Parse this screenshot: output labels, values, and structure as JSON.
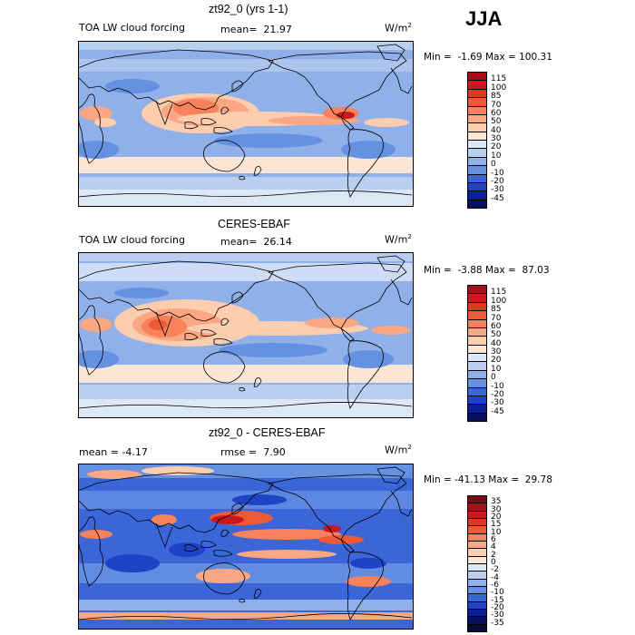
{
  "season": "JJA",
  "panels": [
    {
      "title": "zt92_0 (yrs 1-1)",
      "left_label": "TOA LW cloud forcing",
      "stat_label": "mean=",
      "stat_value": "21.97",
      "units": "W/m",
      "units_sup": "2",
      "minmax": "Min =  -1.69 Max = 100.31",
      "colorbar": {
        "labels": [
          "115",
          "100",
          "85",
          "70",
          "60",
          "50",
          "40",
          "30",
          "20",
          "10",
          "0",
          "-10",
          "-20",
          "-30",
          "-45"
        ],
        "colors": [
          "#a50f15",
          "#cb181d",
          "#e0381f",
          "#ef5a36",
          "#f7825c",
          "#fca783",
          "#fdcdb0",
          "#fbe6d6",
          "#dde8f7",
          "#b9cff0",
          "#8fb0e8",
          "#6690e2",
          "#3b66d8",
          "#1f43c4",
          "#0b1e9c",
          "#08115e"
        ]
      }
    },
    {
      "title": "CERES-EBAF",
      "left_label": "TOA LW cloud forcing",
      "stat_label": "mean=",
      "stat_value": "26.14",
      "units": "W/m",
      "units_sup": "2",
      "minmax": "Min =  -3.88 Max =  87.03",
      "colorbar": {
        "labels": [
          "115",
          "100",
          "85",
          "70",
          "60",
          "50",
          "40",
          "30",
          "20",
          "10",
          "0",
          "-10",
          "-20",
          "-30",
          "-45"
        ],
        "colors": [
          "#a50f15",
          "#cb181d",
          "#e0381f",
          "#ef5a36",
          "#f7825c",
          "#fca783",
          "#fdcdb0",
          "#fbe6d6",
          "#dde8f7",
          "#b9cff0",
          "#8fb0e8",
          "#6690e2",
          "#3b66d8",
          "#1f43c4",
          "#0b1e9c",
          "#08115e"
        ]
      }
    },
    {
      "title": "zt92_0 - CERES-EBAF",
      "left_label": "mean =  -4.17",
      "stat_label": "rmse =",
      "stat_value": "7.90",
      "units": "W/m",
      "units_sup": "2",
      "minmax": "Min = -41.13 Max =  29.78",
      "colorbar": {
        "labels": [
          "35",
          "30",
          "20",
          "15",
          "10",
          "6",
          "4",
          "2",
          "0",
          "-2",
          "-4",
          "-6",
          "-10",
          "-15",
          "-20",
          "-30",
          "-35"
        ],
        "colors": [
          "#7a0b10",
          "#a50f15",
          "#cb181d",
          "#e0381f",
          "#ef5a36",
          "#f7825c",
          "#fca783",
          "#fdcdb0",
          "#fbe6d6",
          "#dde8f7",
          "#b9cff0",
          "#8fb0e8",
          "#6690e2",
          "#3b66d8",
          "#1f43c4",
          "#0b1e9c",
          "#08115e",
          "#040a3a"
        ]
      }
    }
  ]
}
